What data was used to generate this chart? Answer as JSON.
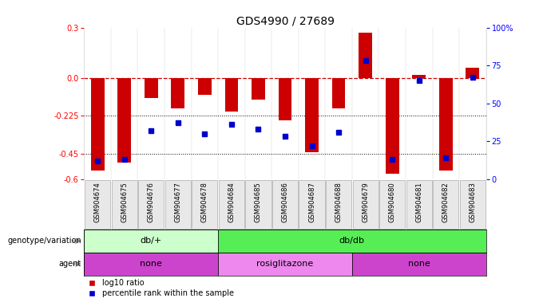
{
  "title": "GDS4990 / 27689",
  "samples": [
    "GSM904674",
    "GSM904675",
    "GSM904676",
    "GSM904677",
    "GSM904678",
    "GSM904684",
    "GSM904685",
    "GSM904686",
    "GSM904687",
    "GSM904688",
    "GSM904679",
    "GSM904680",
    "GSM904681",
    "GSM904682",
    "GSM904683"
  ],
  "log10_ratio": [
    -0.55,
    -0.5,
    -0.12,
    -0.18,
    -0.1,
    -0.2,
    -0.13,
    -0.25,
    -0.44,
    -0.18,
    0.27,
    -0.57,
    0.02,
    -0.55,
    0.06
  ],
  "percentile_rank": [
    12,
    13,
    32,
    37,
    30,
    36,
    33,
    28,
    22,
    31,
    78,
    13,
    65,
    14,
    67
  ],
  "ylim_left": [
    -0.6,
    0.3
  ],
  "ylim_right": [
    0,
    100
  ],
  "yticks_left": [
    0.3,
    0.0,
    -0.225,
    -0.45,
    -0.6
  ],
  "yticks_right": [
    100,
    75,
    50,
    25,
    0
  ],
  "bar_color": "#cc0000",
  "dot_color": "#0000cc",
  "zero_line_color": "#cc0000",
  "genotype_groups": [
    {
      "label": "db/+",
      "start": 0,
      "end": 5,
      "color": "#ccffcc"
    },
    {
      "label": "db/db",
      "start": 5,
      "end": 15,
      "color": "#55ee55"
    }
  ],
  "agent_groups": [
    {
      "label": "none",
      "start": 0,
      "end": 5,
      "color": "#cc44cc"
    },
    {
      "label": "rosiglitazone",
      "start": 5,
      "end": 10,
      "color": "#ee88ee"
    },
    {
      "label": "none",
      "start": 10,
      "end": 15,
      "color": "#cc44cc"
    }
  ],
  "legend_bar_label": "log10 ratio",
  "legend_dot_label": "percentile rank within the sample",
  "title_fontsize": 10,
  "tick_fontsize": 7,
  "annot_fontsize": 8,
  "sample_fontsize": 6
}
